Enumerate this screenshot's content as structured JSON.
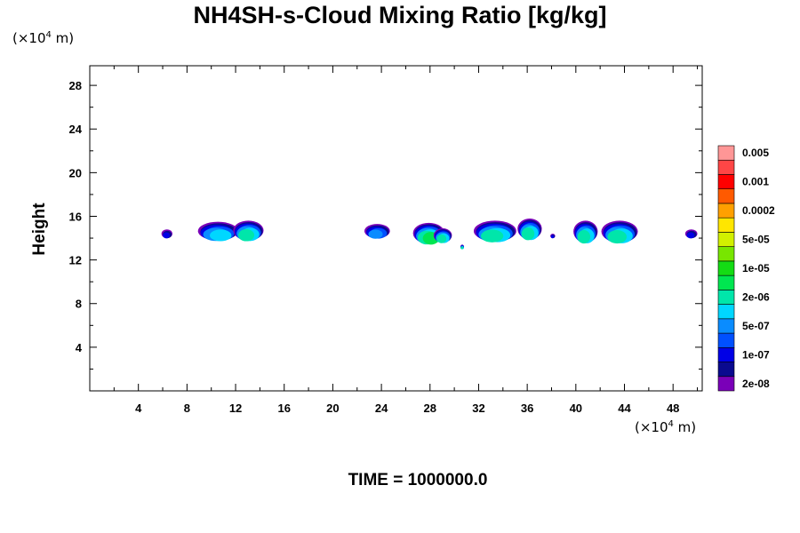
{
  "chart_data": {
    "type": "heatmap",
    "title": "NH4SH-s-Cloud Mixing Ratio [kg/kg]",
    "xlabel": "",
    "ylabel": "Height",
    "x_unit": {
      "prefix": "(×10",
      "exp": "4",
      "suffix": " m)"
    },
    "y_unit": {
      "prefix": "(×10",
      "exp": "4",
      "suffix": " m)"
    },
    "footer": "TIME = 1000000.0",
    "xlim": [
      0,
      50.4
    ],
    "ylim": [
      0,
      29.8
    ],
    "x_ticks": [
      4,
      8,
      12,
      16,
      20,
      24,
      28,
      32,
      36,
      40,
      44,
      48
    ],
    "y_ticks": [
      4,
      8,
      12,
      16,
      20,
      24,
      28
    ],
    "colorbar": {
      "colors": [
        "#7a00b8",
        "#0a0a8f",
        "#0000e6",
        "#0050ff",
        "#0a8cff",
        "#00d7ff",
        "#00e6aa",
        "#00e650",
        "#14dc14",
        "#78e600",
        "#d2f000",
        "#ffe600",
        "#ffa000",
        "#ff5a00",
        "#ff0000",
        "#ff4646",
        "#ff9696"
      ],
      "labels": [
        "2e-08",
        "1e-07",
        "5e-07",
        "2e-06",
        "1e-05",
        "5e-05",
        "0.0002",
        "0.001",
        "0.005"
      ]
    },
    "cloud_cells": [
      {
        "x": [
          5.9,
          6.8
        ],
        "y": [
          14.0,
          14.8
        ],
        "core_level": 3
      },
      {
        "x": [
          8.9,
          12.2
        ],
        "y": [
          13.8,
          15.5
        ],
        "core_level": 6
      },
      {
        "x": [
          11.8,
          14.3
        ],
        "y": [
          13.8,
          15.6
        ],
        "core_level": 7
      },
      {
        "x": [
          22.6,
          24.7
        ],
        "y": [
          14.0,
          15.3
        ],
        "core_level": 5
      },
      {
        "x": [
          26.6,
          29.2
        ],
        "y": [
          13.5,
          15.4
        ],
        "core_level": 8
      },
      {
        "x": [
          28.3,
          29.8
        ],
        "y": [
          13.6,
          14.9
        ],
        "core_level": 7
      },
      {
        "x": [
          30.5,
          30.8
        ],
        "y": [
          13.0,
          13.4
        ],
        "core_level": 7
      },
      {
        "x": [
          31.6,
          35.1
        ],
        "y": [
          13.7,
          15.6
        ],
        "core_level": 7
      },
      {
        "x": [
          35.2,
          37.2
        ],
        "y": [
          13.9,
          15.8
        ],
        "core_level": 7
      },
      {
        "x": [
          37.9,
          38.3
        ],
        "y": [
          14.0,
          14.4
        ],
        "core_level": 3
      },
      {
        "x": [
          39.8,
          41.8
        ],
        "y": [
          13.6,
          15.6
        ],
        "core_level": 7
      },
      {
        "x": [
          42.1,
          45.1
        ],
        "y": [
          13.6,
          15.6
        ],
        "core_level": 7
      },
      {
        "x": [
          49.0,
          50.0
        ],
        "y": [
          14.0,
          14.8
        ],
        "core_level": 3
      }
    ]
  }
}
